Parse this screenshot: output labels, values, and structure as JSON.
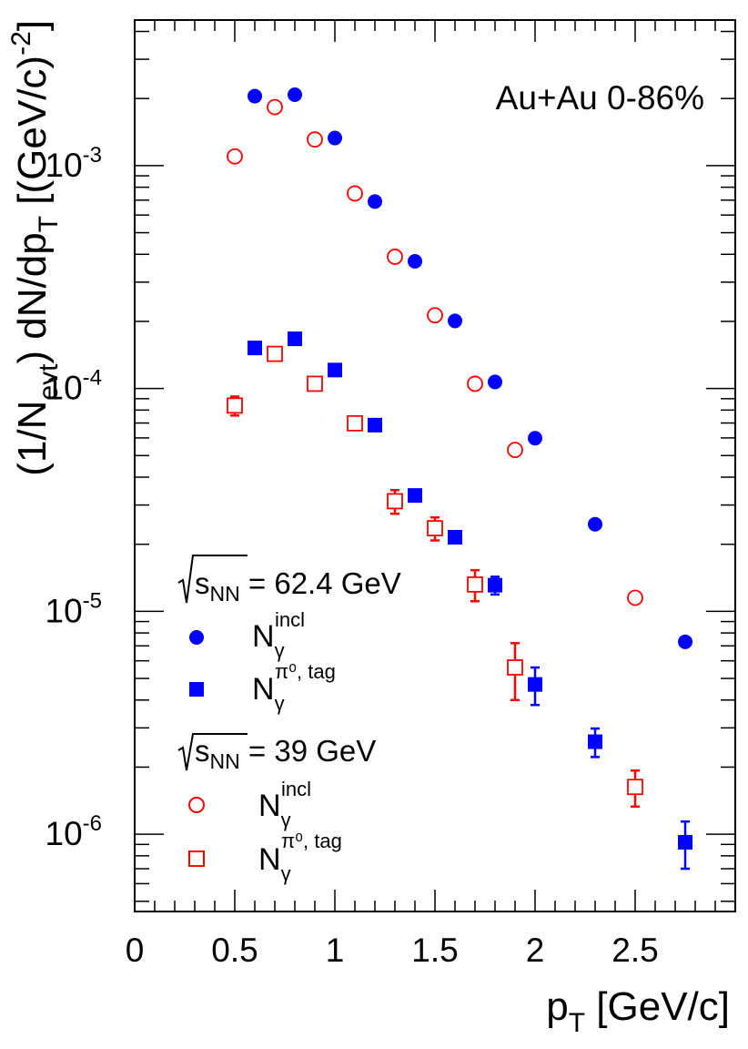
{
  "chart_data": {
    "type": "scatter",
    "annotation": "Au+Au 0-86%",
    "xlabel": {
      "main": "p",
      "sub": "T",
      "rest": " [GeV/c]"
    },
    "ylabel": {
      "p1": "(1/N",
      "sub1": "evt",
      "p2": ") dN/dp",
      "sub2": "T",
      "p3": " [(GeV/c)",
      "sup": "-2",
      "p4": "]"
    },
    "xlim": [
      0,
      3.0
    ],
    "ylim": [
      4.5e-07,
      0.0045
    ],
    "yscale": "log",
    "x_ticks": [
      {
        "v": 0,
        "label": "0"
      },
      {
        "v": 0.5,
        "label": "0.5"
      },
      {
        "v": 1,
        "label": "1"
      },
      {
        "v": 1.5,
        "label": "1.5"
      },
      {
        "v": 2,
        "label": "2"
      },
      {
        "v": 2.5,
        "label": "2.5"
      }
    ],
    "y_ticks": [
      {
        "v": 1e-06,
        "base": "10",
        "exp": "-6"
      },
      {
        "v": 1e-05,
        "base": "10",
        "exp": "-5"
      },
      {
        "v": 0.0001,
        "base": "10",
        "exp": "-4"
      },
      {
        "v": 0.001,
        "base": "10",
        "exp": "-3"
      }
    ],
    "legend_groups": [
      {
        "sqrt": "s",
        "sub": "NN",
        "rest": " = 62.4 GeV"
      },
      {
        "sqrt": "s",
        "sub": "NN",
        "rest": " = 39 GeV"
      }
    ],
    "series": [
      {
        "name": "62.4 GeV inclusive",
        "label_main": "N",
        "label_sub": "γ",
        "label_sup": "incl",
        "marker": "circle",
        "filled": true,
        "color": "#0000ff",
        "points": [
          {
            "x": 0.6,
            "y": 0.00205
          },
          {
            "x": 0.8,
            "y": 0.00208
          },
          {
            "x": 1.0,
            "y": 0.00133
          },
          {
            "x": 1.2,
            "y": 0.00069
          },
          {
            "x": 1.4,
            "y": 0.000372
          },
          {
            "x": 1.6,
            "y": 0.000201
          },
          {
            "x": 1.8,
            "y": 0.000107
          },
          {
            "x": 2.0,
            "y": 5.98e-05
          },
          {
            "x": 2.3,
            "y": 2.46e-05
          },
          {
            "x": 2.75,
            "y": 7.3e-06
          }
        ]
      },
      {
        "name": "62.4 GeV pi0 tagged",
        "label_main": "N",
        "label_sub": "γ",
        "label_sup": "π⁰, tag",
        "marker": "square",
        "filled": true,
        "color": "#0000ff",
        "points": [
          {
            "x": 0.6,
            "y": 0.000152,
            "err": 5e-06
          },
          {
            "x": 0.8,
            "y": 0.000167,
            "err": 5e-06
          },
          {
            "x": 1.0,
            "y": 0.000121,
            "err": 4e-06
          },
          {
            "x": 1.2,
            "y": 6.85e-05,
            "err": 2e-06
          },
          {
            "x": 1.4,
            "y": 3.31e-05,
            "err": 1e-06
          },
          {
            "x": 1.6,
            "y": 2.15e-05,
            "err": 1.2e-06
          },
          {
            "x": 1.8,
            "y": 1.31e-05,
            "err": 1.2e-06
          },
          {
            "x": 2.0,
            "y": 4.7e-06,
            "err": 9e-07
          },
          {
            "x": 2.3,
            "y": 2.6e-06,
            "err": 3.8e-07
          },
          {
            "x": 2.75,
            "y": 9.2e-07,
            "err": 2.2e-07
          }
        ]
      },
      {
        "name": "39 GeV inclusive",
        "label_main": "N",
        "label_sub": "γ",
        "label_sup": "incl",
        "marker": "circle",
        "filled": false,
        "color": "#ff0000",
        "points": [
          {
            "x": 0.5,
            "y": 0.0011
          },
          {
            "x": 0.7,
            "y": 0.00183
          },
          {
            "x": 0.9,
            "y": 0.00131
          },
          {
            "x": 1.1,
            "y": 0.00075
          },
          {
            "x": 1.3,
            "y": 0.00039
          },
          {
            "x": 1.5,
            "y": 0.000213
          },
          {
            "x": 1.7,
            "y": 0.000105
          },
          {
            "x": 1.9,
            "y": 5.3e-05
          },
          {
            "x": 2.5,
            "y": 1.15e-05
          }
        ]
      },
      {
        "name": "39 GeV pi0 tagged",
        "label_main": "N",
        "label_sub": "γ",
        "label_sup": "π⁰, tag",
        "marker": "square",
        "filled": false,
        "color": "#ff0000",
        "points": [
          {
            "x": 0.5,
            "y": 8.38e-05,
            "err": 8.2e-06
          },
          {
            "x": 0.7,
            "y": 0.000143,
            "err": 5e-06
          },
          {
            "x": 0.9,
            "y": 0.000105,
            "err": 6e-06
          },
          {
            "x": 1.1,
            "y": 6.98e-05,
            "err": 3e-06
          },
          {
            "x": 1.3,
            "y": 3.12e-05,
            "err": 3.8e-06
          },
          {
            "x": 1.5,
            "y": 2.36e-05,
            "err": 2.8e-06
          },
          {
            "x": 1.7,
            "y": 1.32e-05,
            "err": 2.1e-06
          },
          {
            "x": 1.9,
            "y": 5.6e-06,
            "err": 1.6e-06
          },
          {
            "x": 2.5,
            "y": 1.63e-06,
            "err": 3e-07
          }
        ]
      }
    ]
  }
}
